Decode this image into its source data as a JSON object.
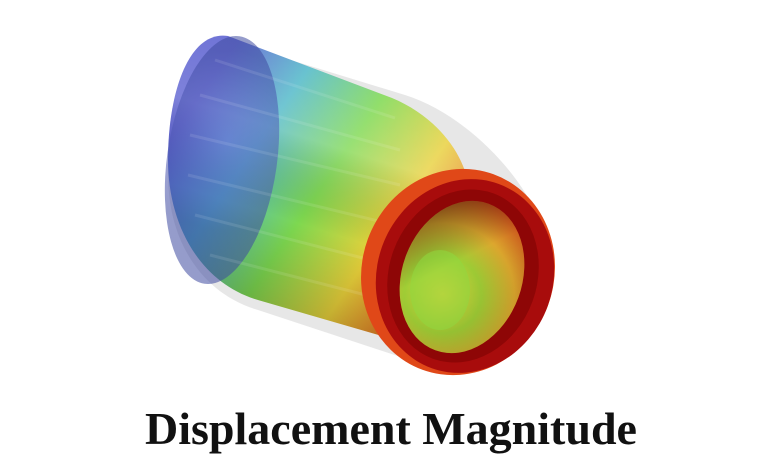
{
  "figure": {
    "caption": "Displacement Magnitude",
    "colors": {
      "low": "#5a5fd0",
      "mid_low": "#4fc8c0",
      "mid": "#7dd850",
      "mid_high": "#e8d03a",
      "high": "#e24a1a",
      "max": "#a30808",
      "undeformed_ghost": "#c9c9c9"
    }
  }
}
